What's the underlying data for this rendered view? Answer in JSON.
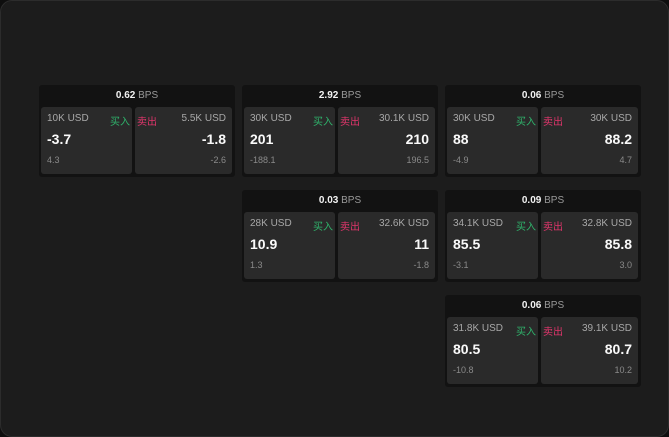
{
  "colors": {
    "buy": "#2fb36b",
    "sell": "#e0356b",
    "background": "#1c1c1c",
    "card": "#2a2a2a"
  },
  "labels": {
    "buy": "买入",
    "sell": "卖出",
    "unit": "BPS"
  },
  "panels": [
    {
      "spread": "0.62",
      "bid_size": "10K USD",
      "bid": "-3.7",
      "bid_change": "4.3",
      "ask_size": "5.5K USD",
      "ask": "-1.8",
      "ask_change": "-2.6"
    },
    {
      "spread": "2.92",
      "bid_size": "30K USD",
      "bid": "201",
      "bid_change": "-188.1",
      "ask_size": "30.1K USD",
      "ask": "210",
      "ask_change": "196.5"
    },
    {
      "spread": "0.06",
      "bid_size": "30K USD",
      "bid": "88",
      "bid_change": "-4.9",
      "ask_size": "30K USD",
      "ask": "88.2",
      "ask_change": "4.7"
    },
    {
      "spread": "0.03",
      "bid_size": "28K USD",
      "bid": "10.9",
      "bid_change": "1.3",
      "ask_size": "32.6K USD",
      "ask": "11",
      "ask_change": "-1.8"
    },
    {
      "spread": "0.09",
      "bid_size": "34.1K USD",
      "bid": "85.5",
      "bid_change": "-3.1",
      "ask_size": "32.8K USD",
      "ask": "85.8",
      "ask_change": "3.0"
    },
    {
      "spread": "0.06",
      "bid_size": "31.8K USD",
      "bid": "80.5",
      "bid_change": "-10.8",
      "ask_size": "39.1K USD",
      "ask": "80.7",
      "ask_change": "10.2"
    }
  ]
}
